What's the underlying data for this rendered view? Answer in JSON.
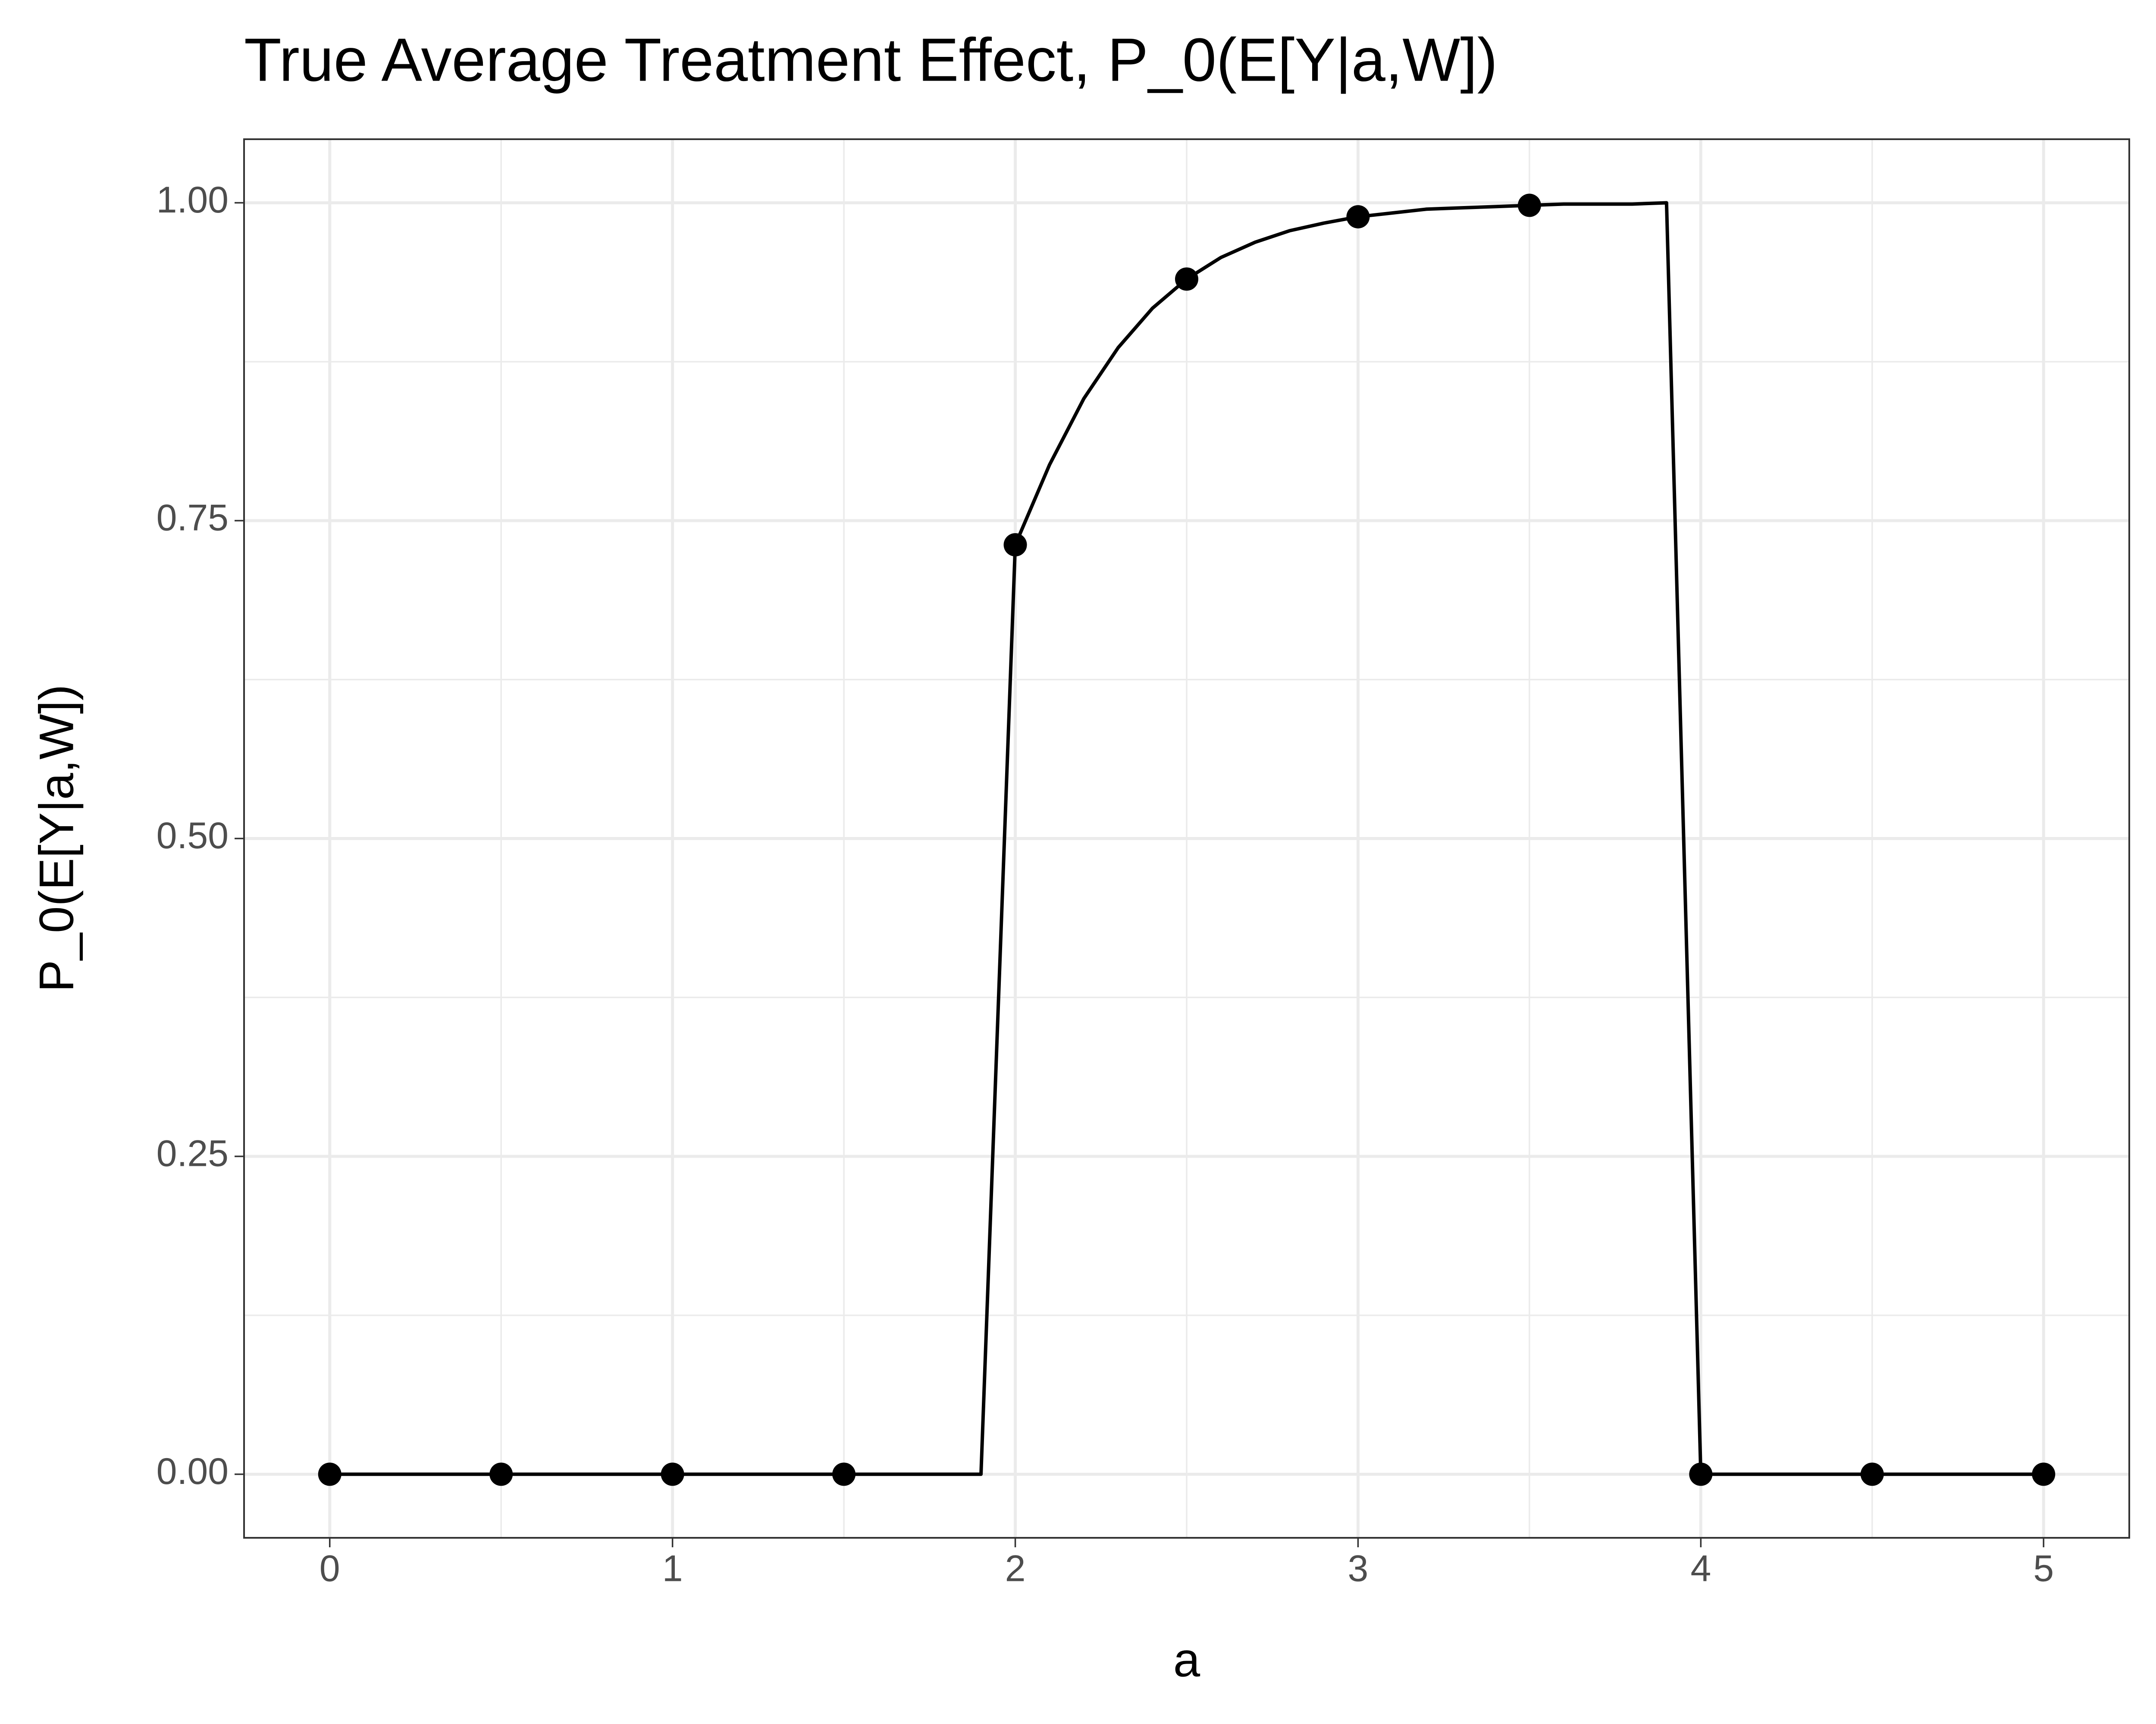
{
  "chart_data": {
    "type": "line",
    "title": "True Average Treatment Effect, P_0(E[Y|a,W])",
    "x_label": "a",
    "y_label": "P_0(E[Y|a,W])",
    "xlim": [
      -0.25,
      5.25
    ],
    "ylim": [
      -0.05,
      1.05
    ],
    "xticks": [
      0,
      1,
      2,
      3,
      4,
      5
    ],
    "yticks": [
      {
        "value": 0,
        "label": "0.00"
      },
      {
        "value": 0.25,
        "label": "0.25"
      },
      {
        "value": 0.5,
        "label": "0.50"
      },
      {
        "value": 0.75,
        "label": "0.75"
      },
      {
        "value": 1,
        "label": "1.00"
      }
    ],
    "xminor": [
      0.5,
      1.5,
      2.5,
      3.5,
      4.5
    ],
    "yminor": [
      0.125,
      0.375,
      0.625,
      0.875
    ],
    "grid": true,
    "series": [
      {
        "type": "line",
        "color": "#000000",
        "x": [
          0,
          0.1,
          0.2,
          0.3,
          0.4,
          0.5,
          0.6,
          0.7,
          0.8,
          0.9,
          1,
          1.1,
          1.2,
          1.3,
          1.4,
          1.5,
          1.6,
          1.7,
          1.8,
          1.9,
          2,
          2.1,
          2.2,
          2.3,
          2.4,
          2.5,
          2.6,
          2.7,
          2.8,
          2.9,
          3,
          3.1,
          3.2,
          3.3,
          3.4,
          3.5,
          3.6,
          3.7,
          3.8,
          3.9,
          4,
          4.1,
          4.2,
          4.3,
          4.4,
          4.5,
          4.6,
          4.7,
          4.8,
          4.9,
          5
        ],
        "values": [
          0,
          0,
          0,
          0,
          0,
          0,
          0,
          0,
          0,
          0,
          0,
          0,
          0,
          0,
          0,
          0,
          0,
          0,
          0,
          0,
          0.731,
          0.794,
          0.846,
          0.886,
          0.917,
          0.94,
          0.957,
          0.969,
          0.978,
          0.984,
          0.989,
          0.992,
          0.995,
          0.996,
          0.997,
          0.998,
          0.999,
          0.999,
          0.999,
          1,
          0,
          0,
          0,
          0,
          0,
          0,
          0,
          0,
          0,
          0,
          0
        ]
      },
      {
        "type": "point",
        "color": "#000000",
        "x": [
          0,
          0.5,
          1,
          1.5,
          2,
          2.5,
          3,
          3.5,
          4,
          4.5,
          5
        ],
        "values": [
          0,
          0,
          0,
          0,
          0.731,
          0.94,
          0.989,
          0.998,
          0,
          0,
          0
        ]
      }
    ]
  }
}
